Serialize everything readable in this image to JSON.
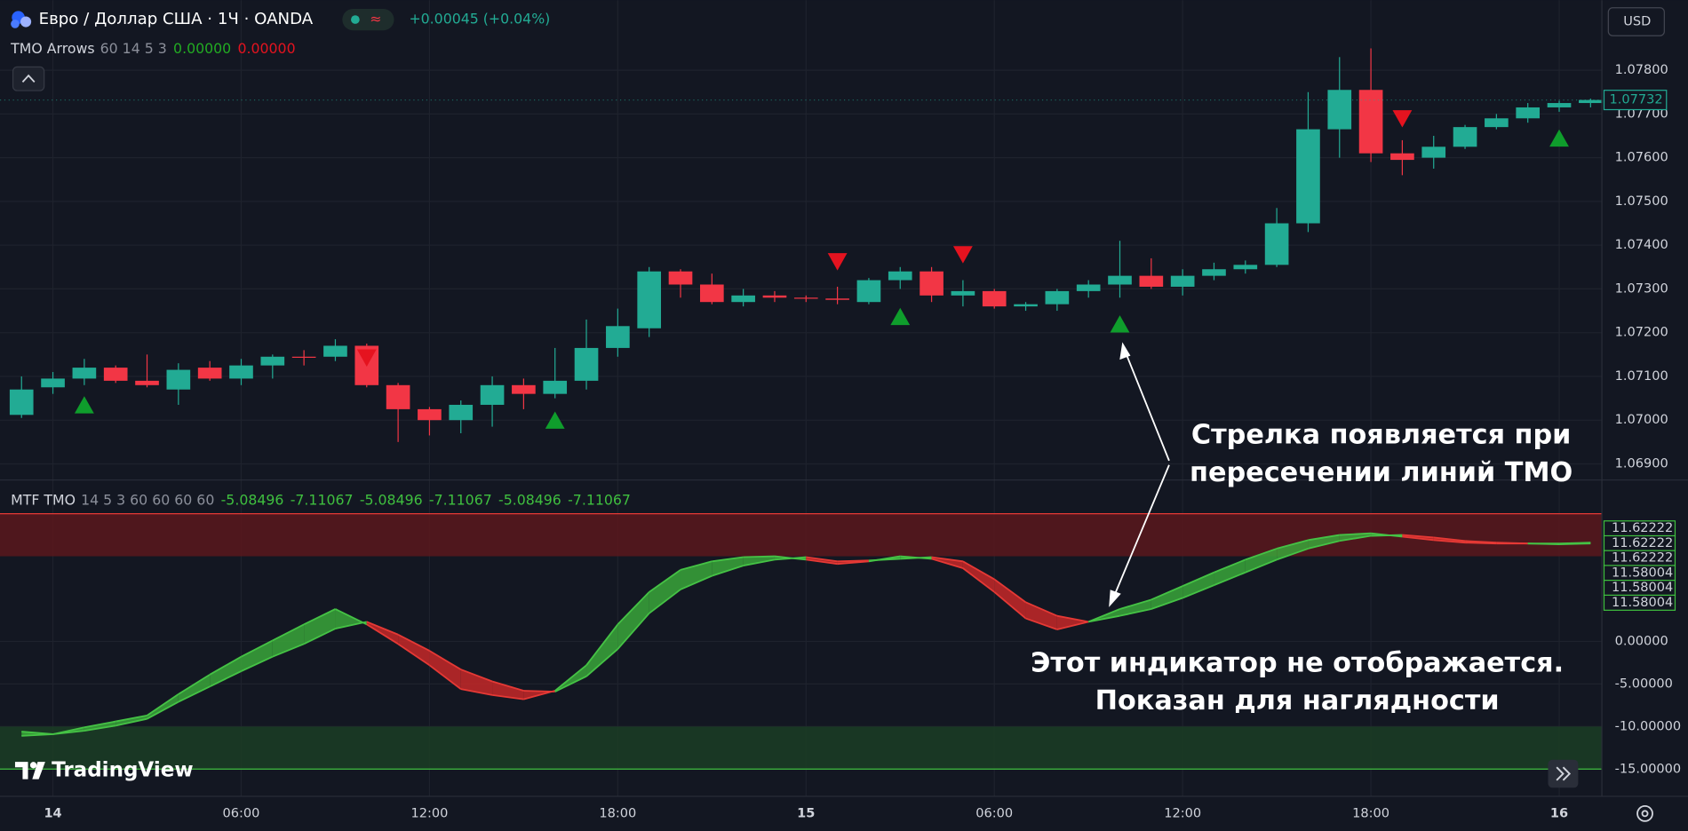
{
  "chart_data": [
    {
      "type": "candlestick",
      "title": "Евро / Доллар США · 1Ч · OANDA",
      "change": "+0.00045 (+0.04%)",
      "currency": "USD",
      "indicator_name": "TMO Arrows",
      "indicator_params": "60 14 5 3",
      "indicator_values": [
        "0.00000",
        "0.00000"
      ],
      "last_price_label": "1.07732",
      "up_color": "#22ab94",
      "down_color": "#f23645",
      "categories": [
        null,
        "14",
        null,
        null,
        null,
        null,
        null,
        "06:00",
        null,
        null,
        null,
        null,
        null,
        "12:00",
        null,
        null,
        null,
        null,
        null,
        "18:00",
        null,
        null,
        null,
        null,
        null,
        "15",
        null,
        null,
        null,
        null,
        null,
        "06:00",
        null,
        null,
        null,
        null,
        null,
        "12:00",
        null,
        null,
        null,
        null,
        null,
        "18:00",
        null,
        null,
        null,
        null,
        null,
        "16",
        null
      ],
      "open": [
        1.07012,
        1.07075,
        1.07095,
        1.0712,
        1.0709,
        1.0707,
        1.0712,
        1.07095,
        1.07125,
        1.07145,
        1.07145,
        1.0717,
        1.0708,
        1.07025,
        1.07,
        1.07035,
        1.0708,
        1.0706,
        1.0709,
        1.07165,
        1.0721,
        1.0734,
        1.0731,
        1.0727,
        1.07285,
        1.0728,
        1.07278,
        1.0727,
        1.0732,
        1.0734,
        1.07285,
        1.07295,
        1.0726,
        1.07265,
        1.07295,
        1.0731,
        1.0733,
        1.07305,
        1.0733,
        1.07345,
        1.07355,
        1.0745,
        1.07665,
        1.07755,
        1.0761,
        1.076,
        1.07625,
        1.0767,
        1.0769,
        1.07715,
        1.07725
      ],
      "high": [
        1.071,
        1.0711,
        1.0714,
        1.07125,
        1.0715,
        1.0713,
        1.07135,
        1.0714,
        1.0715,
        1.0716,
        1.07185,
        1.07175,
        1.07085,
        1.0703,
        1.07045,
        1.071,
        1.07095,
        1.07165,
        1.0723,
        1.07255,
        1.0735,
        1.07345,
        1.07335,
        1.073,
        1.07295,
        1.07285,
        1.07305,
        1.07325,
        1.0735,
        1.0735,
        1.0732,
        1.073,
        1.0727,
        1.073,
        1.0732,
        1.0741,
        1.0737,
        1.07345,
        1.0736,
        1.07365,
        1.07485,
        1.0775,
        1.0783,
        1.0785,
        1.0764,
        1.0765,
        1.07675,
        1.077,
        1.07725,
        1.0773,
        1.07735
      ],
      "low": [
        1.07005,
        1.0706,
        1.0708,
        1.07085,
        1.07075,
        1.07035,
        1.0709,
        1.0708,
        1.07095,
        1.07125,
        1.07135,
        1.07075,
        1.0695,
        1.06965,
        1.0697,
        1.06985,
        1.07025,
        1.0705,
        1.0707,
        1.07145,
        1.0719,
        1.0728,
        1.07265,
        1.0726,
        1.0727,
        1.0727,
        1.07265,
        1.07265,
        1.073,
        1.0727,
        1.0726,
        1.07255,
        1.0725,
        1.0725,
        1.0728,
        1.0728,
        1.073,
        1.07285,
        1.0732,
        1.07335,
        1.0735,
        1.0743,
        1.076,
        1.0759,
        1.0756,
        1.07575,
        1.0762,
        1.07665,
        1.0768,
        1.07705,
        1.07715
      ],
      "close": [
        1.0707,
        1.07095,
        1.0712,
        1.0709,
        1.0708,
        1.07115,
        1.07095,
        1.07125,
        1.07145,
        1.07143,
        1.0717,
        1.0708,
        1.07025,
        1.07,
        1.07035,
        1.0708,
        1.0706,
        1.0709,
        1.07165,
        1.07215,
        1.0734,
        1.0731,
        1.0727,
        1.07285,
        1.0728,
        1.07278,
        1.07275,
        1.0732,
        1.0734,
        1.07285,
        1.07295,
        1.0726,
        1.07265,
        1.07295,
        1.0731,
        1.0733,
        1.07305,
        1.0733,
        1.07345,
        1.07355,
        1.0745,
        1.07665,
        1.07755,
        1.0761,
        1.07595,
        1.07625,
        1.0767,
        1.0769,
        1.07715,
        1.07725,
        1.07732
      ],
      "series": [
        {
          "name": "buy",
          "color": "#0f9d2c",
          "direction": "up",
          "values": [
            null,
            null,
            1.07035,
            null,
            null,
            null,
            null,
            null,
            null,
            null,
            null,
            null,
            null,
            null,
            null,
            null,
            null,
            1.07,
            null,
            null,
            null,
            null,
            null,
            null,
            null,
            null,
            null,
            null,
            1.07237,
            null,
            null,
            null,
            null,
            null,
            null,
            1.0722,
            null,
            null,
            null,
            null,
            null,
            null,
            null,
            null,
            null,
            null,
            null,
            null,
            null,
            1.07645,
            null
          ]
        },
        {
          "name": "sell",
          "color": "#e5131f",
          "direction": "down",
          "values": [
            null,
            null,
            null,
            null,
            null,
            null,
            null,
            null,
            null,
            null,
            null,
            1.07142,
            null,
            null,
            null,
            null,
            null,
            null,
            null,
            null,
            null,
            null,
            null,
            null,
            null,
            null,
            1.07362,
            null,
            null,
            null,
            1.07378,
            null,
            null,
            null,
            null,
            null,
            null,
            null,
            null,
            null,
            null,
            null,
            null,
            null,
            1.07689,
            null,
            null,
            null,
            null,
            null,
            null
          ]
        }
      ],
      "ylim": [
        1.06863,
        1.0796
      ],
      "yticks": [
        {
          "value": 1.069,
          "label": "1.06900"
        },
        {
          "value": 1.07,
          "label": "1.07000"
        },
        {
          "value": 1.071,
          "label": "1.07100"
        },
        {
          "value": 1.072,
          "label": "1.07200"
        },
        {
          "value": 1.073,
          "label": "1.07300"
        },
        {
          "value": 1.074,
          "label": "1.07400"
        },
        {
          "value": 1.075,
          "label": "1.07500"
        },
        {
          "value": 1.076,
          "label": "1.07600"
        },
        {
          "value": 1.077,
          "label": "1.07700"
        },
        {
          "value": 1.078,
          "label": "1.07800"
        }
      ],
      "grid": true,
      "annotation": [
        "Стрелка появляется при",
        "пересечении линий ТМО"
      ]
    },
    {
      "type": "band",
      "indicator_name": "MTF TMO",
      "indicator_params": "14 5 3 60 60 60 60",
      "indicator_values": [
        -5.08496,
        -7.11067,
        -5.08496,
        -7.11067,
        -5.08496,
        -7.11067
      ],
      "last_value_labels": [
        "11.62222",
        "11.62222",
        "11.62222",
        "11.58004",
        "11.58004",
        "11.58004"
      ],
      "up_color": "#3aa63a",
      "down_color": "#c62828",
      "series": [
        {
          "name": "fast",
          "values": [
            -10.6,
            -10.9,
            -10.1,
            -9.4,
            -8.7,
            -6.2,
            -3.9,
            -1.8,
            0.1,
            2.0,
            3.8,
            2.0,
            -0.3,
            -2.8,
            -5.6,
            -6.3,
            -6.8,
            -5.8,
            -2.8,
            2.0,
            5.8,
            8.4,
            9.4,
            9.9,
            10.0,
            9.6,
            9.1,
            9.4,
            10.0,
            9.7,
            8.6,
            5.8,
            2.7,
            1.4,
            2.3,
            3.8,
            4.9,
            6.5,
            8.1,
            9.6,
            10.9,
            11.9,
            12.5,
            12.7,
            12.3,
            11.9,
            11.6,
            11.5,
            11.5,
            11.5,
            11.6
          ]
        },
        {
          "name": "slow",
          "values": [
            -11.1,
            -10.9,
            -10.5,
            -9.9,
            -9.1,
            -7.1,
            -5.3,
            -3.5,
            -1.8,
            -0.3,
            1.5,
            2.3,
            0.8,
            -1.1,
            -3.3,
            -4.7,
            -5.8,
            -5.9,
            -4.1,
            -0.9,
            3.3,
            6.1,
            7.7,
            8.9,
            9.6,
            9.9,
            9.4,
            9.5,
            9.7,
            9.9,
            9.4,
            7.3,
            4.6,
            3.0,
            2.3,
            3.0,
            3.8,
            5.1,
            6.6,
            8.1,
            9.6,
            10.9,
            11.8,
            12.4,
            12.5,
            12.2,
            11.8,
            11.6,
            11.5,
            11.4,
            11.5
          ]
        }
      ],
      "zones": [
        {
          "from": 10,
          "to": 15,
          "color": "#5a171c",
          "edge": 15,
          "edge_color": "#e53935"
        },
        {
          "from": -10,
          "to": -15,
          "color": "#1b3d24",
          "edge": -15,
          "edge_color": "#3fbf3f"
        }
      ],
      "ylim": [
        -18.2,
        18.7
      ],
      "yticks": [
        {
          "value": 0,
          "label": "0.00000"
        },
        {
          "value": -5,
          "label": "-5.00000"
        },
        {
          "value": -10,
          "label": "-10.00000"
        },
        {
          "value": -15,
          "label": "-15.00000"
        }
      ],
      "annotation": [
        "Этот индикатор не отображается.",
        "Показан для наглядности"
      ]
    }
  ],
  "brand": "TradingView"
}
